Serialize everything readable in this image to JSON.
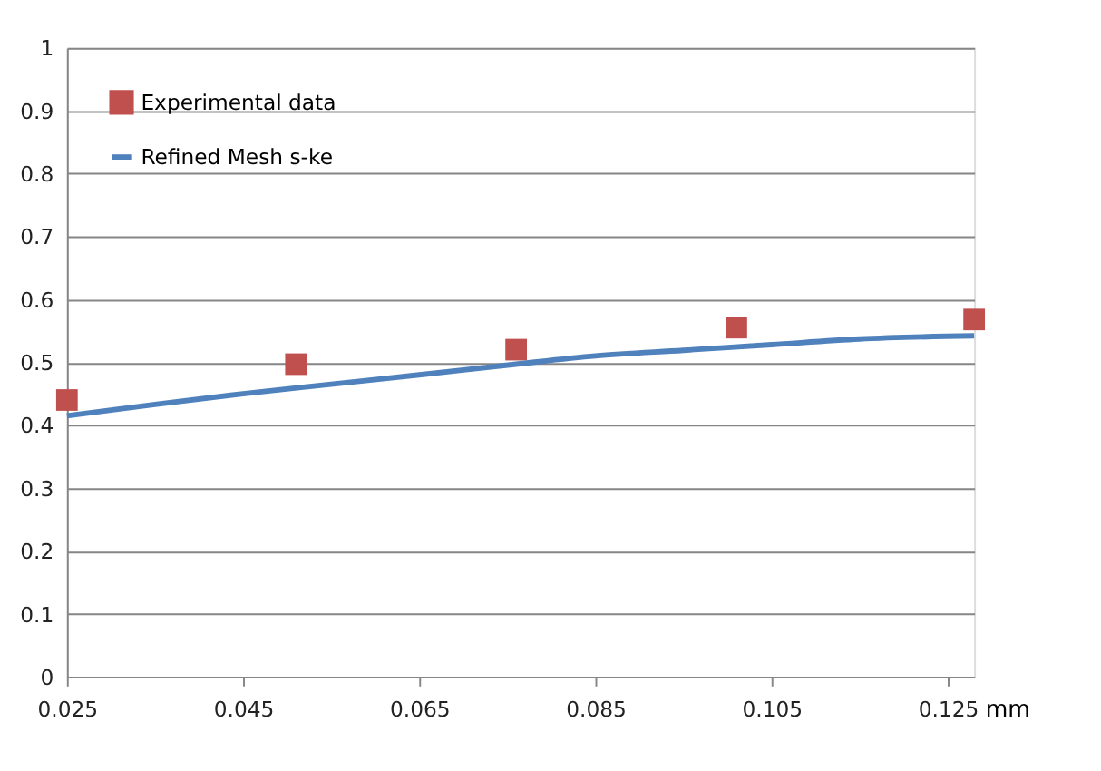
{
  "chart_data": {
    "type": "scatter",
    "xlabel": "mm",
    "series": [
      {
        "name": "Experimental data",
        "color": "#c0504d",
        "marker": "square",
        "x": [
          0.025,
          0.051,
          0.076,
          0.101,
          0.128
        ],
        "values": [
          0.44,
          0.497,
          0.52,
          0.555,
          0.568
        ]
      },
      {
        "name": "Refined Mesh s-ke",
        "type": "line",
        "color": "#4f81bd",
        "line_style": "solid",
        "x": [
          0.025,
          0.035,
          0.045,
          0.055,
          0.065,
          0.076,
          0.085,
          0.095,
          0.105,
          0.115,
          0.128
        ],
        "values": [
          0.415,
          0.433,
          0.45,
          0.465,
          0.48,
          0.497,
          0.51,
          0.519,
          0.528,
          0.537,
          0.542
        ]
      }
    ],
    "xlim": [
      0.025,
      0.128
    ],
    "xticks": [
      0.025,
      0.045,
      0.065,
      0.085,
      0.105,
      0.125
    ],
    "ylim": [
      0,
      1
    ],
    "yticks": [
      0,
      0.1,
      0.2,
      0.3,
      0.4,
      0.5,
      0.6,
      0.7,
      0.8,
      0.9,
      1
    ],
    "grid": "y",
    "legend": "top left"
  }
}
